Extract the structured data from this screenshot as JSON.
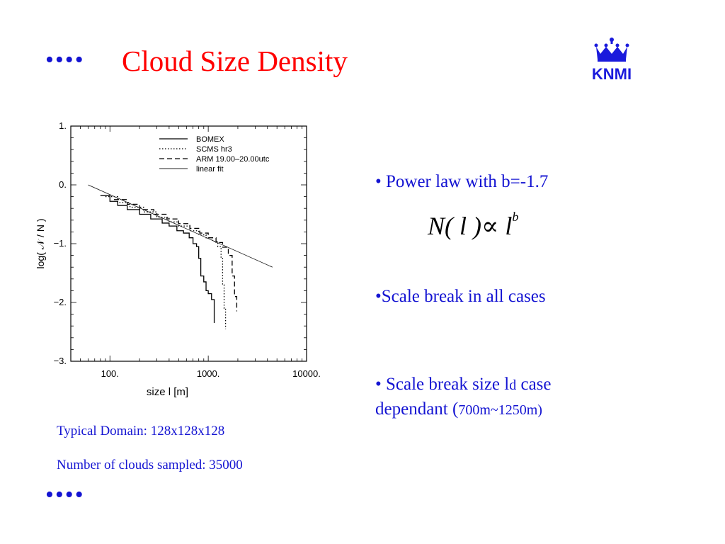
{
  "slide": {
    "dots_top": "••••",
    "dots_bottom": "••••",
    "title": "Cloud Size Density",
    "logo_text": "KNMI",
    "bullets": {
      "b1": "• Power law with b=-1.7",
      "formula_main": "N( l )∝ l",
      "formula_exp": "b",
      "b2": "•Scale break in all cases",
      "b3_part1": "• Scale break size l",
      "b3_sub": "d",
      "b3_part2": " case",
      "b3_part3": "dependant (",
      "b3_part4": "700m~1250m)"
    },
    "captions": {
      "domain": "Typical Domain: 128x128x128",
      "clouds": "Number of clouds sampled: 35000"
    }
  },
  "chart_data": {
    "type": "line",
    "xlabel": "size l [m]",
    "ylabel": "log( 𝒩 / N )",
    "x_scale": "log",
    "xlim": [
      40,
      10000
    ],
    "ylim": [
      -3,
      1
    ],
    "x_ticks": [
      {
        "v": 100,
        "label": "100."
      },
      {
        "v": 1000,
        "label": "1000."
      },
      {
        "v": 10000,
        "label": "10000."
      }
    ],
    "y_ticks": [
      {
        "v": 1,
        "label": "1."
      },
      {
        "v": 0,
        "label": "0."
      },
      {
        "v": -1,
        "label": "−1."
      },
      {
        "v": -2,
        "label": "−2."
      },
      {
        "v": -3,
        "label": "−3."
      }
    ],
    "legend_position": "top-right",
    "series": [
      {
        "name": "BOMEX",
        "style": "solid",
        "x": [
          80,
          100,
          120,
          150,
          200,
          260,
          340,
          400,
          480,
          560,
          640,
          700,
          760,
          800,
          840,
          900,
          950,
          1000,
          1080,
          1150,
          1150
        ],
        "y": [
          -0.18,
          -0.28,
          -0.35,
          -0.42,
          -0.5,
          -0.58,
          -0.65,
          -0.7,
          -0.78,
          -0.82,
          -0.9,
          -1.0,
          -1.05,
          -1.25,
          -1.55,
          -1.65,
          -1.8,
          -1.85,
          -1.95,
          -2.35,
          -2.35
        ]
      },
      {
        "name": "SCMS hr3",
        "style": "dotted",
        "x": [
          90,
          120,
          160,
          220,
          300,
          400,
          500,
          650,
          800,
          950,
          1100,
          1250,
          1350,
          1400,
          1450,
          1500
        ],
        "y": [
          -0.2,
          -0.3,
          -0.38,
          -0.46,
          -0.55,
          -0.63,
          -0.7,
          -0.78,
          -0.85,
          -0.9,
          -0.96,
          -1.05,
          -1.25,
          -1.7,
          -2.1,
          -2.45
        ]
      },
      {
        "name": "ARM 19.00–20.00utc",
        "style": "dashed",
        "x": [
          110,
          150,
          200,
          280,
          380,
          500,
          650,
          820,
          1000,
          1200,
          1400,
          1600,
          1750,
          1850,
          1950
        ],
        "y": [
          -0.25,
          -0.33,
          -0.42,
          -0.5,
          -0.58,
          -0.66,
          -0.74,
          -0.82,
          -0.9,
          -0.98,
          -1.06,
          -1.2,
          -1.55,
          -1.9,
          -2.15
        ]
      },
      {
        "name": "linear fit",
        "style": "thin",
        "x": [
          60,
          4500
        ],
        "y": [
          0.0,
          -1.4
        ]
      }
    ]
  }
}
